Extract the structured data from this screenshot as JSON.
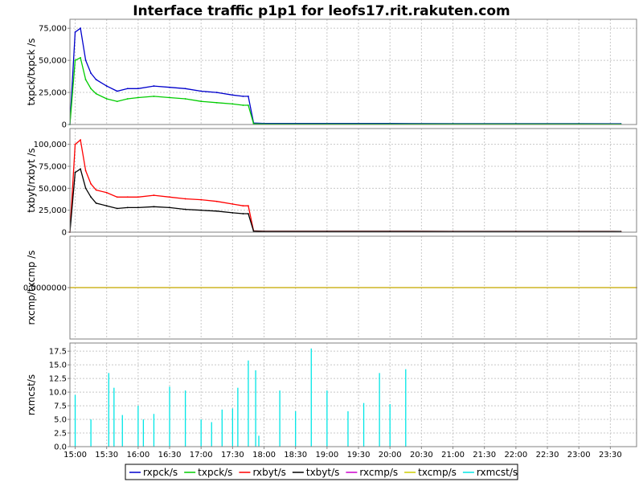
{
  "chart_data": {
    "title": "Interface traffic p1p1 for leofs17.rit.rakuten.com",
    "type": "line",
    "grid": true,
    "legend_position": "bottom",
    "x_ticks": [
      "15:00",
      "15:30",
      "16:00",
      "16:30",
      "17:00",
      "17:30",
      "18:00",
      "18:30",
      "19:00",
      "19:30",
      "20:00",
      "20:30",
      "21:00",
      "21:30",
      "22:00",
      "22:30",
      "23:00",
      "23:30"
    ],
    "x_range": [
      "14:55",
      "23:55"
    ],
    "panels": [
      {
        "ylabel": "txpck/txpck /s",
        "ylim": [
          0,
          82000
        ],
        "yticks": [
          "0",
          "25,000",
          "50,000",
          "75,000"
        ],
        "ytick_values": [
          0,
          25000,
          50000,
          75000
        ],
        "series": [
          {
            "name": "rxpck/s",
            "color": "#0000cc",
            "x": [
              "14:55",
              "15:00",
              "15:05",
              "15:10",
              "15:15",
              "15:20",
              "15:30",
              "15:40",
              "15:50",
              "16:00",
              "16:15",
              "16:30",
              "16:45",
              "17:00",
              "17:15",
              "17:30",
              "17:40",
              "17:45",
              "17:50",
              "18:00",
              "19:00",
              "20:00",
              "21:00",
              "22:00",
              "23:00",
              "23:40"
            ],
            "values": [
              0,
              72000,
              75000,
              50000,
              40000,
              35000,
              30000,
              26000,
              28000,
              28000,
              30000,
              29000,
              28000,
              26000,
              25000,
              23000,
              22000,
              22000,
              1200,
              800,
              800,
              800,
              700,
              700,
              700,
              600
            ]
          },
          {
            "name": "txpck/s",
            "color": "#00cc00",
            "x": [
              "14:55",
              "15:00",
              "15:05",
              "15:10",
              "15:15",
              "15:20",
              "15:30",
              "15:40",
              "15:50",
              "16:00",
              "16:15",
              "16:30",
              "16:45",
              "17:00",
              "17:15",
              "17:30",
              "17:40",
              "17:45",
              "17:50",
              "18:00",
              "19:00",
              "20:00",
              "21:00",
              "22:00",
              "23:00",
              "23:40"
            ],
            "values": [
              0,
              50000,
              52000,
              35000,
              28000,
              24000,
              20000,
              18000,
              20000,
              21000,
              22000,
              21000,
              20000,
              18000,
              17000,
              16000,
              15000,
              15000,
              600,
              400,
              400,
              400,
              400,
              400,
              400,
              300
            ]
          }
        ]
      },
      {
        "ylabel": "txbyt/rxbyt /s",
        "ylim": [
          0,
          118000
        ],
        "yticks": [
          "0",
          "25,000",
          "50,000",
          "75,000",
          "100,000"
        ],
        "ytick_values": [
          0,
          25000,
          50000,
          75000,
          100000
        ],
        "series": [
          {
            "name": "rxbyt/s",
            "color": "#ff0000",
            "x": [
              "14:55",
              "15:00",
              "15:05",
              "15:10",
              "15:15",
              "15:20",
              "15:30",
              "15:40",
              "15:50",
              "16:00",
              "16:15",
              "16:30",
              "16:45",
              "17:00",
              "17:15",
              "17:30",
              "17:40",
              "17:45",
              "17:50",
              "18:00",
              "19:00",
              "20:00",
              "21:00",
              "22:00",
              "23:00",
              "23:40"
            ],
            "values": [
              0,
              100000,
              105000,
              70000,
              55000,
              48000,
              45000,
              40000,
              40000,
              40000,
              42000,
              40000,
              38000,
              37000,
              35000,
              32000,
              30000,
              30000,
              1500,
              1000,
              1000,
              1000,
              900,
              900,
              900,
              800
            ]
          },
          {
            "name": "txbyt/s",
            "color": "#000000",
            "x": [
              "14:55",
              "15:00",
              "15:05",
              "15:10",
              "15:15",
              "15:20",
              "15:30",
              "15:40",
              "15:50",
              "16:00",
              "16:15",
              "16:30",
              "16:45",
              "17:00",
              "17:15",
              "17:30",
              "17:40",
              "17:45",
              "17:50",
              "18:00",
              "19:00",
              "20:00",
              "21:00",
              "22:00",
              "23:00",
              "23:40"
            ],
            "values": [
              0,
              68000,
              72000,
              50000,
              40000,
              33000,
              30000,
              27000,
              28000,
              28000,
              29000,
              28000,
              26000,
              25000,
              24000,
              22000,
              21000,
              21000,
              1200,
              900,
              900,
              900,
              800,
              800,
              800,
              700
            ]
          }
        ]
      },
      {
        "ylabel": "rxcmp/txcmp /s",
        "ylim": [
          -1,
          1
        ],
        "yticks": [
          "0.0000000"
        ],
        "ytick_values": [
          0
        ],
        "series": [
          {
            "name": "rxcmp/s",
            "color": "#cc00cc",
            "x": [
              "14:55",
              "23:55"
            ],
            "values": [
              0,
              0
            ]
          },
          {
            "name": "txcmp/s",
            "color": "#cccc00",
            "x": [
              "14:55",
              "23:55"
            ],
            "values": [
              0,
              0
            ]
          }
        ]
      },
      {
        "ylabel": "rxmcst/s",
        "ylim": [
          0,
          19
        ],
        "yticks": [
          "0.0",
          "2.5",
          "5.0",
          "7.5",
          "10.0",
          "12.5",
          "15.0",
          "17.5"
        ],
        "ytick_values": [
          0,
          2.5,
          5,
          7.5,
          10,
          12.5,
          15,
          17.5
        ],
        "series": [
          {
            "name": "rxmcst/s",
            "color": "#00e6e6",
            "x": [
              "15:00",
              "15:15",
              "15:32",
              "15:37",
              "15:45",
              "16:00",
              "16:05",
              "16:15",
              "16:30",
              "16:45",
              "17:00",
              "17:10",
              "17:20",
              "17:30",
              "17:35",
              "17:45",
              "17:52",
              "17:55",
              "18:15",
              "18:30",
              "18:45",
              "19:00",
              "19:20",
              "19:35",
              "19:50",
              "20:00",
              "20:15"
            ],
            "values": [
              9.5,
              5,
              13.5,
              10.8,
              5.8,
              7.5,
              5,
              6,
              11,
              10.3,
              5,
              4.5,
              6.8,
              7,
              10.8,
              15.8,
              14,
              2,
              10.3,
              6.5,
              18,
              10.3,
              6.5,
              8,
              13.5,
              7.8,
              14.2
            ]
          }
        ]
      }
    ],
    "legend": [
      {
        "name": "rxpck/s",
        "color": "#0000cc"
      },
      {
        "name": "txpck/s",
        "color": "#00cc00"
      },
      {
        "name": "rxbyt/s",
        "color": "#ff0000"
      },
      {
        "name": "txbyt/s",
        "color": "#000000"
      },
      {
        "name": "rxcmp/s",
        "color": "#cc00cc"
      },
      {
        "name": "txcmp/s",
        "color": "#cccc00"
      },
      {
        "name": "rxmcst/s",
        "color": "#00e6e6"
      }
    ]
  }
}
